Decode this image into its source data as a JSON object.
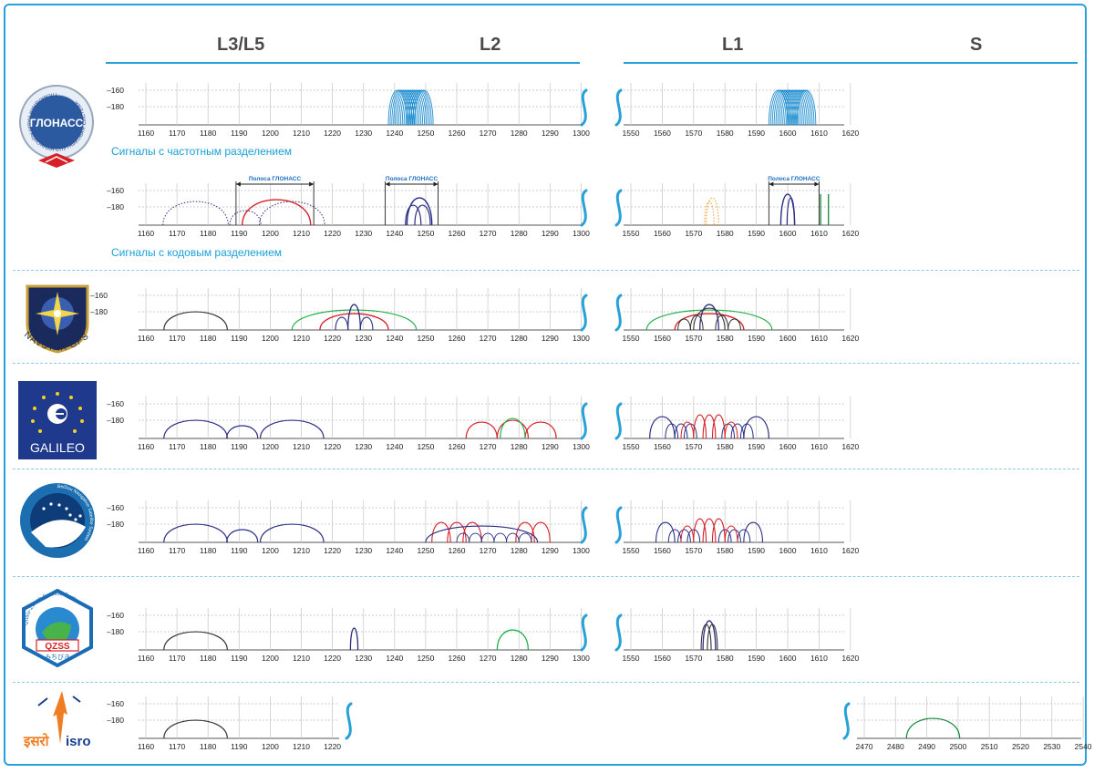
{
  "bands": [
    "L3/L5",
    "L2",
    "L1",
    "S"
  ],
  "captions": {
    "glonass_fdma": "Сигналы с частотным разделением",
    "glonass_cdma": "Сигналы с кодовым разделением"
  },
  "glonass_band_label": "Полоса ГЛОНАСС",
  "y_ticks": [
    "–160",
    "–180"
  ],
  "axes": {
    "low": [
      "1160",
      "1170",
      "1180",
      "1190",
      "1200",
      "1210",
      "1220",
      "1230",
      "1240",
      "1250",
      "1260",
      "1270",
      "1280",
      "1290",
      "1300"
    ],
    "low_short": [
      "1160",
      "1170",
      "1180",
      "1190",
      "1200",
      "1210",
      "1220"
    ],
    "l1": [
      "1550",
      "1560",
      "1570",
      "1580",
      "1590",
      "1600",
      "1610",
      "1620"
    ],
    "s": [
      "2470",
      "2480",
      "2490",
      "2500",
      "2510",
      "2520",
      "2530",
      "2540"
    ]
  },
  "logos": {
    "glonass": "ГЛОНАСС",
    "glonass_ring": "ГЛОБАЛЬНАЯ НАВИГАЦИОННАЯ СПУТНИКОВАЯ СИСТЕМА",
    "gps": "NAVSTAR GPS",
    "galileo": "GALILEO",
    "beidou_ring": "BeiDou Navigation Satellite System",
    "qzss": "QZSS",
    "qzss_sub": "みちびき",
    "qzss_ring": "Quasi-Zenith Satellite System",
    "isro_hindi": "इसरो",
    "isro": "isro"
  },
  "colors": {
    "accent": "#27a1d8",
    "glonass": "#1f8fd0",
    "dark": "#333333",
    "navy": "#2b2d86",
    "red": "#d62027",
    "green": "#21b24b",
    "orange": "#f39a1e",
    "dkgreen": "#138a3c"
  }
}
